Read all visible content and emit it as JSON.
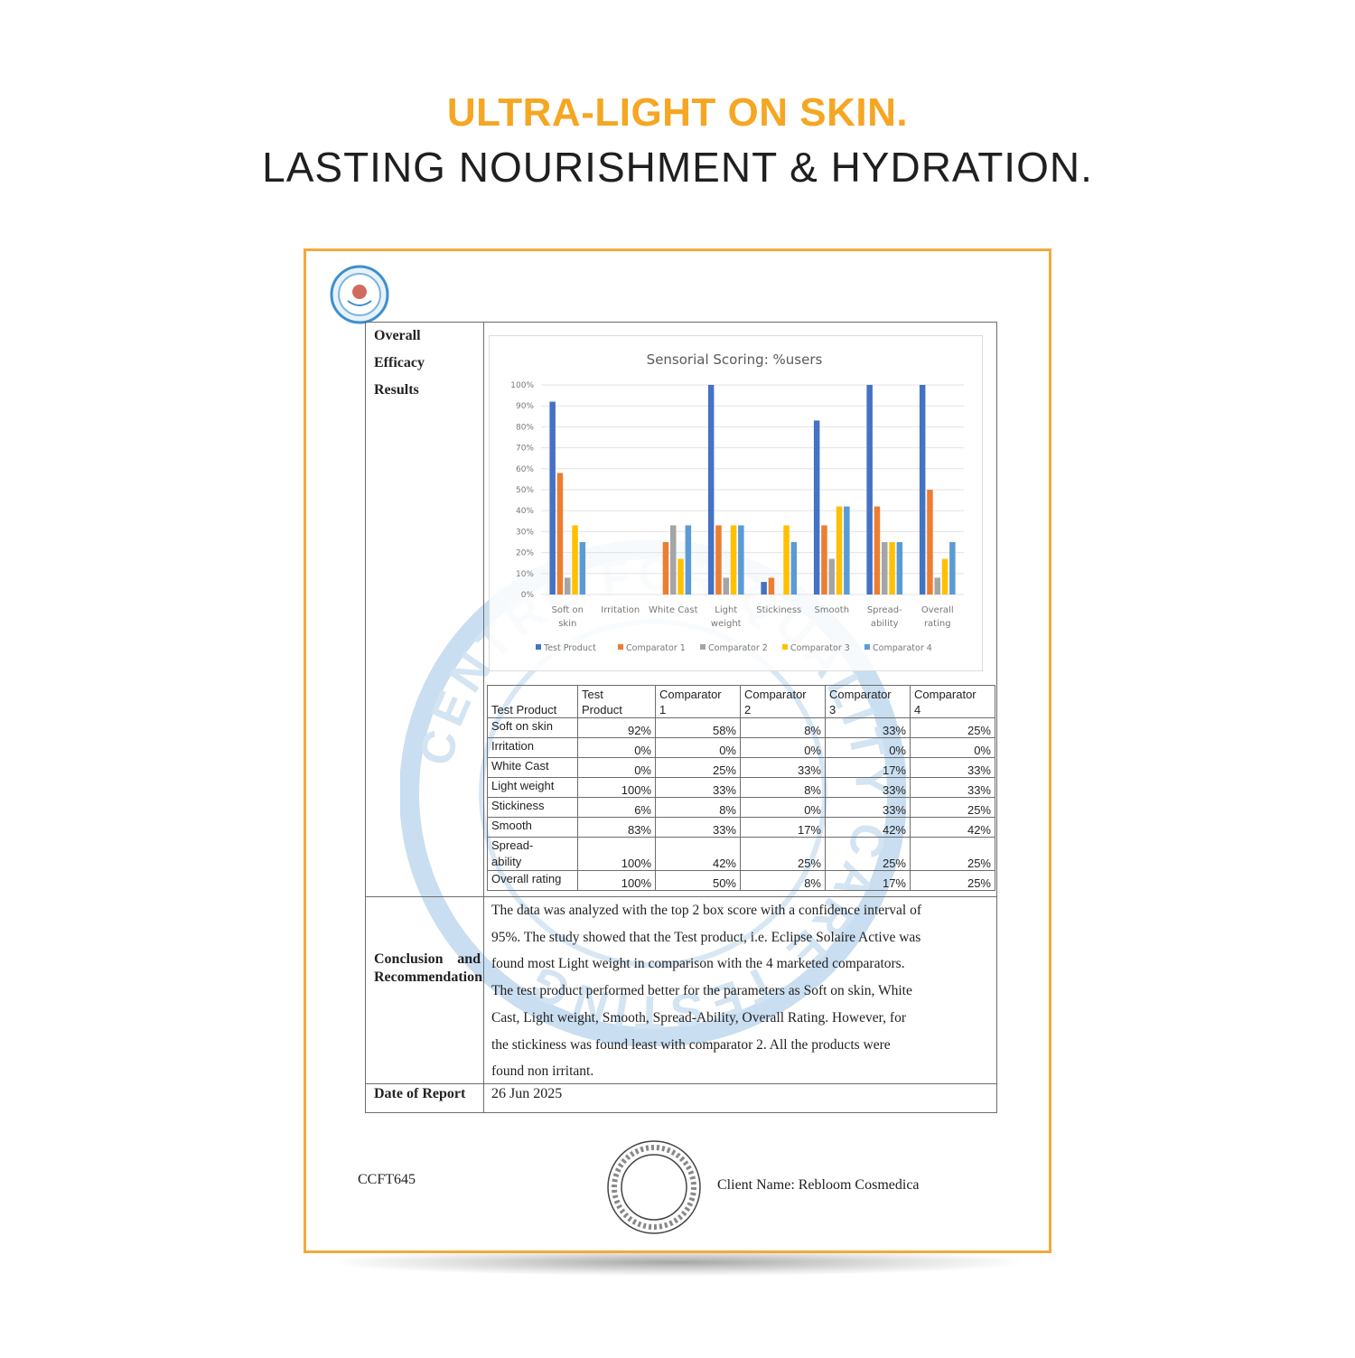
{
  "headline": {
    "line1": "ULTRA-LIGHT ON SKIN.",
    "line2": "LASTING NOURISHMENT & HYDRATION.",
    "accent_color": "#f5a623"
  },
  "document": {
    "logo_icon": "lab-seal-logo",
    "watermark_text": "CENTRE FOR QUALITY CARE TESTING",
    "overall_label": [
      "Overall",
      "Efficacy",
      "Results"
    ],
    "conclusion_label": "Conclusion and Recommendation",
    "conclusion_lines": [
      "The data was analyzed with the top 2 box score with a confidence interval of",
      "95%. The study showed that the Test product, i.e. Eclipse Solaire Active was",
      "found most Light weight in comparison with the 4 marketed comparators.",
      "The test product performed better for the parameters as Soft on skin, White",
      "Cast, Light weight, Smooth, Spread-Ability, Overall Rating. However, for",
      "the stickiness was found least with comparator 2. All the products were",
      "found non irritant."
    ],
    "date_label": "Date of Report",
    "date_value": "26 Jun 2025",
    "report_code": "CCFT645",
    "client_name": "Client Name: Rebloom Cosmedica",
    "frame_color": "#f2a93b"
  },
  "chart_data": {
    "type": "bar",
    "title": "Sensorial Scoring: %users",
    "categories": [
      [
        "Soft on",
        "skin"
      ],
      [
        "Irritation"
      ],
      [
        "White Cast"
      ],
      [
        "Light",
        "weight"
      ],
      [
        "Stickiness"
      ],
      [
        "Smooth"
      ],
      [
        "Spread-",
        "ability"
      ],
      [
        "Overall",
        "rating"
      ]
    ],
    "ylim": [
      0,
      100
    ],
    "yticks": [
      "0%",
      "10%",
      "20%",
      "30%",
      "40%",
      "50%",
      "60%",
      "70%",
      "80%",
      "90%",
      "100%"
    ],
    "legend_position": "bottom",
    "series": [
      {
        "name": "Test Product",
        "color": "#4472c4",
        "values": [
          92,
          0,
          0,
          100,
          6,
          83,
          100,
          100
        ]
      },
      {
        "name": "Comparator 1",
        "color": "#ed7d31",
        "values": [
          58,
          0,
          25,
          33,
          8,
          33,
          42,
          50
        ]
      },
      {
        "name": "Comparator 2",
        "color": "#a5a5a5",
        "values": [
          8,
          0,
          33,
          8,
          0,
          17,
          25,
          8
        ]
      },
      {
        "name": "Comparator 3",
        "color": "#ffc000",
        "values": [
          33,
          0,
          17,
          33,
          33,
          42,
          25,
          17
        ]
      },
      {
        "name": "Comparator 4",
        "color": "#5b9bd5",
        "values": [
          25,
          0,
          33,
          33,
          25,
          42,
          25,
          25
        ]
      }
    ]
  },
  "table": {
    "headers": [
      "Test Product",
      "Test\nProduct",
      "Comparator\n1",
      "Comparator\n2",
      "Comparator\n3",
      "Comparator\n4"
    ],
    "rows": [
      {
        "label": "Soft on skin",
        "values": [
          "92%",
          "58%",
          "8%",
          "33%",
          "25%"
        ]
      },
      {
        "label": "Irritation",
        "values": [
          "0%",
          "0%",
          "0%",
          "0%",
          "0%"
        ]
      },
      {
        "label": "White Cast",
        "values": [
          "0%",
          "25%",
          "33%",
          "17%",
          "33%"
        ]
      },
      {
        "label": "Light weight",
        "values": [
          "100%",
          "33%",
          "8%",
          "33%",
          "33%"
        ]
      },
      {
        "label": "Stickiness",
        "values": [
          "6%",
          "8%",
          "0%",
          "33%",
          "25%"
        ]
      },
      {
        "label": "Smooth",
        "values": [
          "83%",
          "33%",
          "17%",
          "42%",
          "42%"
        ]
      },
      {
        "label": "Spread-\nability",
        "values": [
          "100%",
          "42%",
          "25%",
          "25%",
          "25%"
        ]
      },
      {
        "label": "Overall rating",
        "values": [
          "100%",
          "50%",
          "8%",
          "17%",
          "25%"
        ]
      }
    ]
  }
}
